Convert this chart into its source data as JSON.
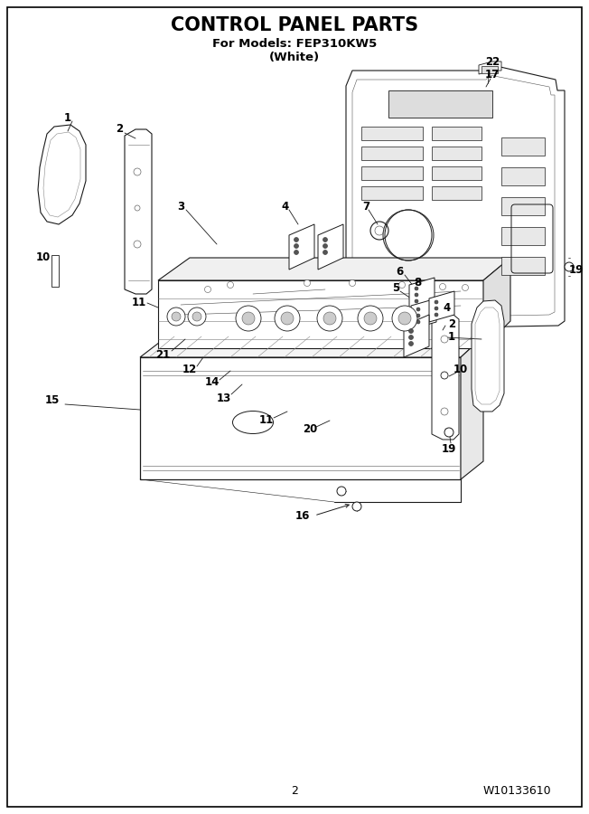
{
  "title": "CONTROL PANEL PARTS",
  "subtitle1": "For Models: FEP310KW5",
  "subtitle2": "(White)",
  "page_number": "2",
  "part_number": "W10133610",
  "bg_color": "#ffffff",
  "lc": "#1a1a1a",
  "title_fontsize": 15,
  "subtitle_fontsize": 9.5,
  "footer_fontsize": 9,
  "label_fontsize": 8.5,
  "fig_width": 6.52,
  "fig_height": 9.0
}
